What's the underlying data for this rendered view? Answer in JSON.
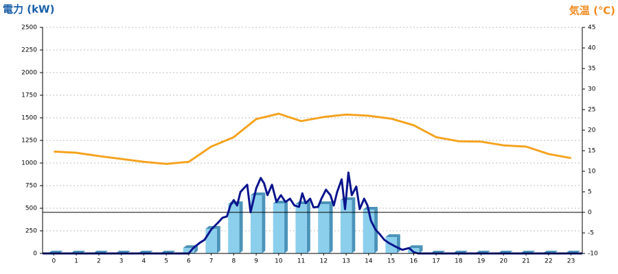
{
  "chart_data": {
    "type": "bar",
    "y_title": "電力 (kW)",
    "y2_title": "気温 (℃)",
    "categories": [
      "0",
      "1",
      "2",
      "3",
      "4",
      "5",
      "6",
      "7",
      "8",
      "9",
      "10",
      "11",
      "12",
      "13",
      "14",
      "15",
      "16",
      "17",
      "18",
      "19",
      "20",
      "21",
      "22",
      "23"
    ],
    "xlim": [
      -0.5,
      23.5
    ],
    "ylim": [
      0,
      2500
    ],
    "yticks": [
      0,
      250,
      500,
      750,
      1000,
      1250,
      1500,
      1750,
      2000,
      2250,
      2500
    ],
    "y2lim": [
      -10,
      45
    ],
    "y2ticks": [
      -10,
      -5,
      0,
      5,
      10,
      15,
      20,
      25,
      30,
      35,
      40,
      45
    ],
    "y2_reference": 0,
    "grid": true,
    "series": [
      {
        "type": "bar",
        "color": "#8ccfec",
        "side_color": "#4b93b9",
        "values": [
          0,
          0,
          0,
          0,
          0,
          0,
          60,
          273,
          545,
          644,
          553,
          545,
          545,
          590,
          485,
          182,
          60,
          0,
          0,
          0,
          0,
          0,
          0,
          0
        ]
      },
      {
        "type": "line",
        "color": "#0a148c",
        "x": [
          -0.5,
          6.0,
          6.2,
          6.5,
          6.7,
          7.0,
          7.3,
          7.5,
          7.7,
          7.85,
          8.0,
          8.15,
          8.3,
          8.5,
          8.6,
          8.75,
          9.0,
          9.2,
          9.35,
          9.5,
          9.7,
          9.9,
          10.1,
          10.3,
          10.5,
          10.7,
          10.9,
          11.05,
          11.2,
          11.4,
          11.55,
          11.75,
          11.9,
          12.1,
          12.3,
          12.45,
          12.6,
          12.8,
          12.95,
          13.1,
          13.25,
          13.45,
          13.6,
          13.8,
          13.95,
          14.1,
          14.3,
          14.5,
          14.7,
          14.9,
          15.2,
          15.5,
          15.8,
          16.0,
          16.2,
          23.5
        ],
        "values": [
          0,
          0,
          60,
          120,
          150,
          265,
          340,
          395,
          410,
          530,
          590,
          530,
          680,
          735,
          760,
          455,
          720,
          835,
          775,
          645,
          760,
          570,
          645,
          570,
          605,
          530,
          515,
          665,
          555,
          605,
          510,
          515,
          605,
          705,
          645,
          530,
          680,
          820,
          490,
          895,
          645,
          740,
          490,
          605,
          530,
          365,
          265,
          210,
          150,
          115,
          75,
          40,
          60,
          15,
          0,
          0
        ]
      },
      {
        "type": "line",
        "axis": "y2",
        "color": "#f5a31f",
        "values": [
          14.8,
          14.5,
          13.7,
          13.0,
          12.3,
          11.8,
          12.3,
          16.0,
          18.3,
          22.7,
          24.0,
          22.2,
          23.2,
          23.8,
          23.5,
          22.8,
          21.2,
          18.3,
          17.3,
          17.2,
          16.3,
          16.0,
          14.2,
          13.2
        ]
      }
    ]
  }
}
